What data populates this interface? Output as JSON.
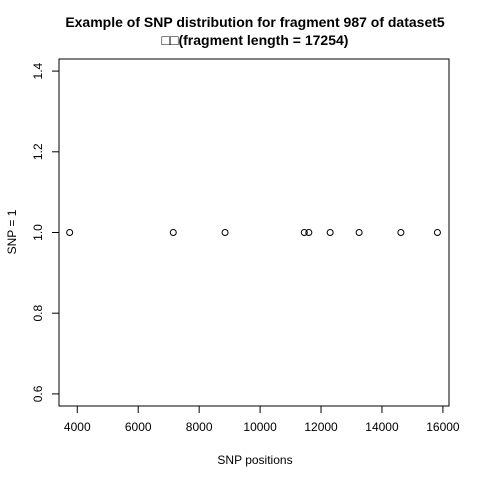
{
  "chart_data": {
    "type": "scatter",
    "title_line1": "Example of SNP distribution for fragment 987 of dataset5",
    "title_line2": "□□(fragment length = 17254)",
    "xlabel": "SNP positions",
    "ylabel": "SNP = 1",
    "xlim": [
      3400,
      16200
    ],
    "ylim": [
      0.57,
      1.43
    ],
    "x_ticks": [
      4000,
      6000,
      8000,
      10000,
      12000,
      14000,
      16000
    ],
    "y_ticks": [
      0.6,
      0.8,
      1.0,
      1.2,
      1.4
    ],
    "y_tick_labels": [
      "0.6",
      "0.8",
      "1.0",
      "1.2",
      "1.4"
    ],
    "points": [
      {
        "x": 3750,
        "y": 1.0
      },
      {
        "x": 7150,
        "y": 1.0
      },
      {
        "x": 8850,
        "y": 1.0
      },
      {
        "x": 11450,
        "y": 1.0
      },
      {
        "x": 11600,
        "y": 1.0
      },
      {
        "x": 12300,
        "y": 1.0
      },
      {
        "x": 13250,
        "y": 1.0
      },
      {
        "x": 14620,
        "y": 1.0
      },
      {
        "x": 15820,
        "y": 1.0
      }
    ],
    "marker": "open-circle",
    "grid": false,
    "legend": "none"
  }
}
